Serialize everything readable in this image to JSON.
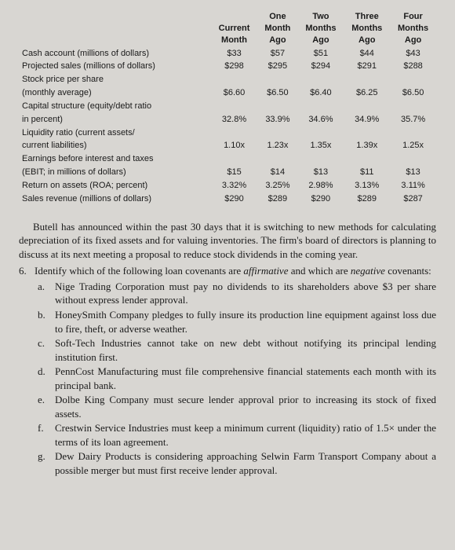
{
  "table": {
    "headers": {
      "rowlabel": "",
      "col1": {
        "l1": "Current",
        "l2": "Month"
      },
      "col2": {
        "l1": "One",
        "l2": "Month",
        "l3": "Ago"
      },
      "col3": {
        "l1": "Two",
        "l2": "Months",
        "l3": "Ago"
      },
      "col4": {
        "l1": "Three",
        "l2": "Months",
        "l3": "Ago"
      },
      "col5": {
        "l1": "Four",
        "l2": "Months",
        "l3": "Ago"
      }
    },
    "rows": [
      {
        "label": "Cash account (millions of dollars)",
        "v": [
          "$33",
          "$57",
          "$51",
          "$44",
          "$43"
        ]
      },
      {
        "label": "Projected sales (millions of dollars)",
        "v": [
          "$298",
          "$295",
          "$294",
          "$291",
          "$288"
        ]
      },
      {
        "label": "Stock price per share",
        "v": [
          "",
          "",
          "",
          "",
          ""
        ]
      },
      {
        "label": "(monthly average)",
        "v": [
          "$6.60",
          "$6.50",
          "$6.40",
          "$6.25",
          "$6.50"
        ]
      },
      {
        "label": "Capital structure (equity/debt ratio",
        "v": [
          "",
          "",
          "",
          "",
          ""
        ]
      },
      {
        "label": "in percent)",
        "v": [
          "32.8%",
          "33.9%",
          "34.6%",
          "34.9%",
          "35.7%"
        ]
      },
      {
        "label": "Liquidity ratio (current assets/",
        "v": [
          "",
          "",
          "",
          "",
          ""
        ]
      },
      {
        "label": "current liabilities)",
        "v": [
          "1.10x",
          "1.23x",
          "1.35x",
          "1.39x",
          "1.25x"
        ]
      },
      {
        "label": "Earnings before interest and taxes",
        "v": [
          "",
          "",
          "",
          "",
          ""
        ]
      },
      {
        "label": "(EBIT; in millions of dollars)",
        "v": [
          "$15",
          "$14",
          "$13",
          "$11",
          "$13"
        ]
      },
      {
        "label": "Return on assets (ROA; percent)",
        "v": [
          "3.32%",
          "3.25%",
          "2.98%",
          "3.13%",
          "3.11%"
        ]
      },
      {
        "label": "Sales revenue (millions of dollars)",
        "v": [
          "$290",
          "$289",
          "$290",
          "$289",
          "$287"
        ]
      }
    ]
  },
  "para1": "Butell has announced within the past 30 days that it is switching to new methods for calculating depreciation of its fixed assets and for valuing inventories. The firm's board of directors is planning to discuss at its next meeting a proposal to reduce stock dividends in the coming year.",
  "q6num": "6.",
  "q6a": "Identify which of the following loan covenants are ",
  "q6i1": "affirmative",
  "q6b": " and which are ",
  "q6i2": "negative",
  "q6c": " covenants:",
  "covenants": [
    {
      "letter": "a.",
      "text": "Nige Trading Corporation must pay no dividends to its shareholders above $3 per share without express lender approval."
    },
    {
      "letter": "b.",
      "text": "HoneySmith Company pledges to fully insure its production line equipment against loss due to fire, theft, or adverse weather."
    },
    {
      "letter": "c.",
      "text": "Soft-Tech Industries cannot take on new debt without notifying its principal lending institution first."
    },
    {
      "letter": "d.",
      "text": "PennCost Manufacturing must file comprehensive financial statements each month with its principal bank."
    },
    {
      "letter": "e.",
      "text": "Dolbe King Company must secure lender approval prior to increasing its stock of fixed assets."
    },
    {
      "letter": "f.",
      "text": "Crestwin Service Industries must keep a minimum current (liquidity) ratio of 1.5× under the terms of its loan agreement."
    },
    {
      "letter": "g.",
      "text": "Dew Dairy Products is considering approaching Selwin Farm Transport Company about a possible merger but must first receive lender approval."
    }
  ]
}
